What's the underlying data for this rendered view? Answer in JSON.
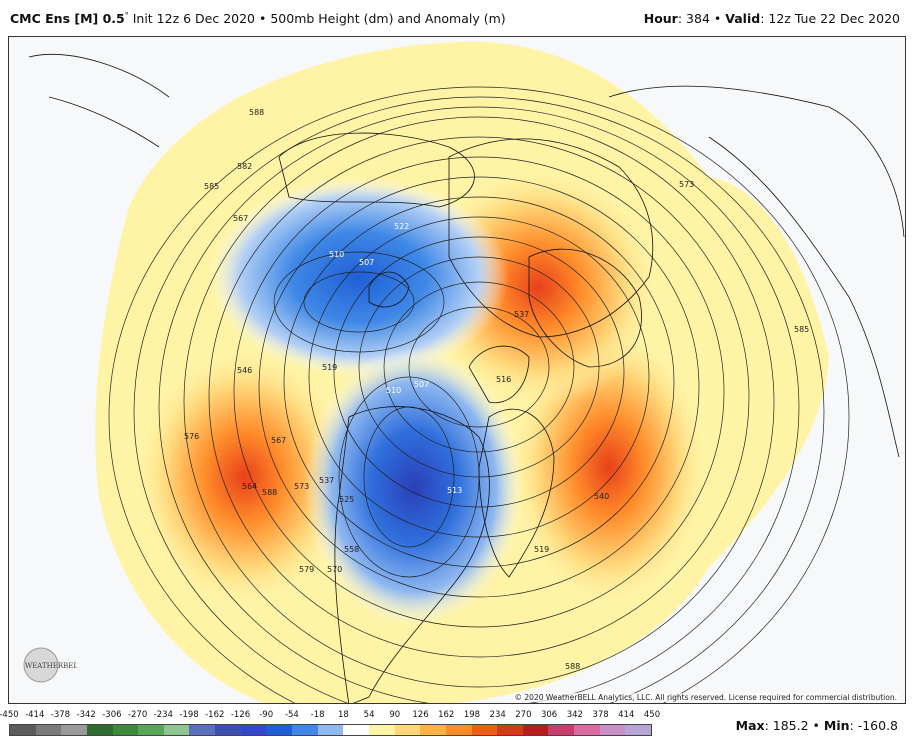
{
  "header": {
    "model": "CMC Ens [M] 0.5",
    "degree": "°",
    "init": " Init 12z 6 Dec 2020",
    "sep1": " • ",
    "product": "500mb Height (dm) and Anomaly (m)",
    "hour_label": "Hour",
    "hour_value": ": 384",
    "sep2": " • ",
    "valid_label": "Valid",
    "valid_value": ": 12z Tue 22 Dec 2020"
  },
  "map": {
    "contour_labels": [
      "588",
      "582",
      "585",
      "567",
      "573",
      "585",
      "522",
      "510",
      "507",
      "519",
      "510",
      "507",
      "516",
      "513",
      "546",
      "576",
      "567",
      "564",
      "558",
      "570",
      "579",
      "588",
      "519",
      "537",
      "525",
      "537",
      "573",
      "540",
      "588"
    ],
    "copyright": "© 2020 WeatherBELL Analytics, LLC. All rights reserved. License required for commercial distribution.",
    "logo_text": "WEATHERBELL"
  },
  "legend": {
    "ticks": [
      "-450",
      "-414",
      "-378",
      "-342",
      "-306",
      "-270",
      "-234",
      "-198",
      "-162",
      "-126",
      "-90",
      "-54",
      "-18",
      "18",
      "54",
      "90",
      "126",
      "162",
      "198",
      "234",
      "270",
      "306",
      "342",
      "378",
      "414",
      "450"
    ],
    "colors": [
      "#5c5c5c",
      "#7a7a7a",
      "#9a9a9a",
      "#2e6b2e",
      "#3d8a3d",
      "#59a659",
      "#8fc58f",
      "#5b6fbf",
      "#3d4fb0",
      "#3348cc",
      "#1f5fd6",
      "#3f88e6",
      "#8fb8f0",
      "#ffffff",
      "#fff3a8",
      "#ffd77a",
      "#ffb347",
      "#ff8c2a",
      "#f25c19",
      "#d93a16",
      "#b81d1d",
      "#c43e6e",
      "#d96ba0",
      "#c98fc7",
      "#b8a5d6"
    ],
    "max_label": "Max",
    "max_value": ": 185.2",
    "sep": " • ",
    "min_label": "Min",
    "min_value": ": -160.8"
  }
}
